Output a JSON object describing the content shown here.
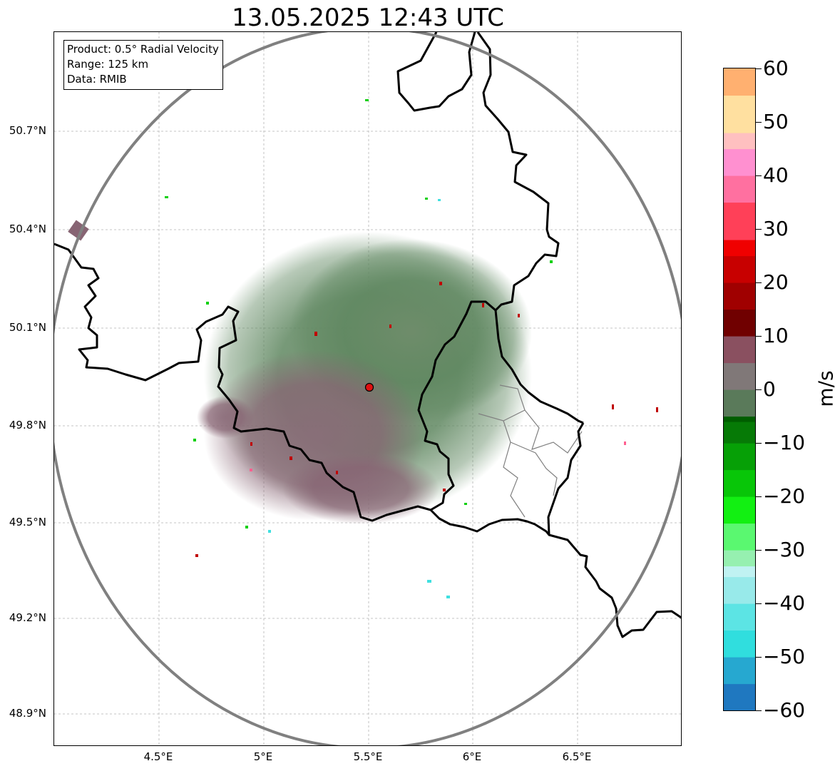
{
  "title": "13.05.2025 12:43 UTC",
  "info_box": {
    "product": "Product: 0.5° Radial Velocity",
    "range": "Range: 125 km",
    "data": "Data: RMIB"
  },
  "map": {
    "radar_site": {
      "lon": 5.505,
      "lat": 49.914
    },
    "lat_labels": [
      "50.7°N",
      "50.4°N",
      "50.1°N",
      "49.8°N",
      "49.5°N",
      "49.2°N",
      "48.9°N"
    ],
    "lat_values": [
      50.7,
      50.4,
      50.1,
      49.8,
      49.5,
      49.2,
      48.9
    ],
    "lon_labels": [
      "4.5°E",
      "5°E",
      "5.5°E",
      "6°E",
      "6.5°E"
    ],
    "lon_values": [
      4.5,
      5.0,
      5.5,
      6.0,
      6.5
    ],
    "extent": {
      "lon_min": 4.0,
      "lon_max": 7.0,
      "lat_min": 48.8,
      "lat_max": 51.0
    },
    "colors": {
      "border": "#000000",
      "range_ring": "#808080",
      "site_marker": "#e01010",
      "grid": "#b4b4b4"
    }
  },
  "colorbar": {
    "unit": "m/s",
    "min": -60,
    "max": 60,
    "ticks": [
      "60",
      "50",
      "40",
      "30",
      "20",
      "10",
      "0",
      "−10",
      "−20",
      "−30",
      "−40",
      "−50",
      "−60"
    ],
    "tick_values": [
      60,
      50,
      40,
      30,
      20,
      10,
      0,
      -10,
      -20,
      -30,
      -40,
      -50,
      -60
    ],
    "stops": [
      {
        "v": -60,
        "c": "#1f78c0"
      },
      {
        "v": -55,
        "c": "#26a8d0"
      },
      {
        "v": -50,
        "c": "#30dede"
      },
      {
        "v": -45,
        "c": "#5ce4e4"
      },
      {
        "v": -40,
        "c": "#98eaea"
      },
      {
        "v": -35,
        "c": "#c0f2f2"
      },
      {
        "v": -33,
        "c": "#96f0b0"
      },
      {
        "v": -30,
        "c": "#5af870"
      },
      {
        "v": -25,
        "c": "#12f012"
      },
      {
        "v": -20,
        "c": "#08c608"
      },
      {
        "v": -15,
        "c": "#06a006"
      },
      {
        "v": -10,
        "c": "#067a06"
      },
      {
        "v": -6,
        "c": "#005e00"
      },
      {
        "v": -5,
        "c": "#5a7a5a"
      },
      {
        "v": 0,
        "c": "#807878"
      },
      {
        "v": 5,
        "c": "#8a5060"
      },
      {
        "v": 10,
        "c": "#700000"
      },
      {
        "v": 15,
        "c": "#a00000"
      },
      {
        "v": 20,
        "c": "#c80000"
      },
      {
        "v": 25,
        "c": "#f00000"
      },
      {
        "v": 28,
        "c": "#ff4058"
      },
      {
        "v": 35,
        "c": "#ff70a0"
      },
      {
        "v": 40,
        "c": "#ff90d0"
      },
      {
        "v": 45,
        "c": "#ffc0c0"
      },
      {
        "v": 48,
        "c": "#ffe0a0"
      },
      {
        "v": 55,
        "c": "#ffb070"
      },
      {
        "v": 60,
        "c": "#ff9a50"
      }
    ]
  }
}
